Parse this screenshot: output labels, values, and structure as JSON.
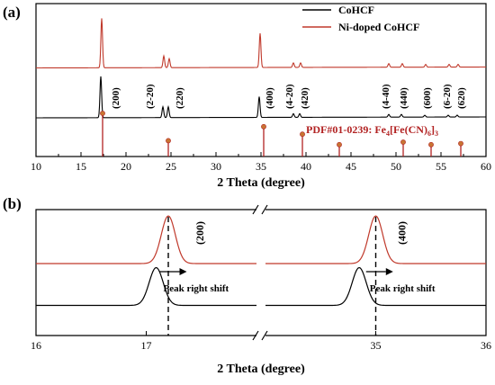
{
  "colors": {
    "cohcf": "#000000",
    "nidoped": "#c0392b",
    "pdf": "#b22222",
    "pdf_marker": "#c87533"
  },
  "chart_data": [
    {
      "type": "line",
      "panel_label": "(a)",
      "xlabel": "2 Theta (degree)",
      "ylabel": "",
      "xlim": [
        10,
        60
      ],
      "x_ticks": [
        10,
        15,
        20,
        25,
        30,
        35,
        40,
        45,
        50,
        55,
        60
      ],
      "x_tick_labels": [
        "10",
        "15",
        "20",
        "25",
        "30",
        "35",
        "40",
        "45",
        "50",
        "55",
        "60"
      ],
      "legend_position": "top-right",
      "series": [
        {
          "name": "CoHCF",
          "peaks": [
            {
              "x": 17.2,
              "height": 46
            },
            {
              "x": 24.1,
              "height": 12
            },
            {
              "x": 24.7,
              "height": 12
            },
            {
              "x": 34.8,
              "height": 23
            },
            {
              "x": 38.6,
              "height": 4
            },
            {
              "x": 39.3,
              "height": 4
            },
            {
              "x": 49.2,
              "height": 3
            },
            {
              "x": 50.6,
              "height": 3
            },
            {
              "x": 53.2,
              "height": 2
            },
            {
              "x": 55.8,
              "height": 2
            },
            {
              "x": 56.8,
              "height": 2
            }
          ]
        },
        {
          "name": "Ni-doped CoHCF",
          "peaks": [
            {
              "x": 17.3,
              "height": 55
            },
            {
              "x": 24.2,
              "height": 13
            },
            {
              "x": 24.8,
              "height": 10
            },
            {
              "x": 34.9,
              "height": 38
            },
            {
              "x": 38.6,
              "height": 5
            },
            {
              "x": 39.4,
              "height": 5
            },
            {
              "x": 49.2,
              "height": 4
            },
            {
              "x": 50.7,
              "height": 4
            },
            {
              "x": 53.3,
              "height": 3
            },
            {
              "x": 55.9,
              "height": 3
            },
            {
              "x": 56.9,
              "height": 3
            }
          ]
        }
      ],
      "reference": {
        "label_prefix": "PDF#01-0239: Fe",
        "sub1": "4",
        "label_mid1": "[Fe(CN)",
        "sub2": "6",
        "label_mid2": "]",
        "sub3": "3",
        "sticks": [
          {
            "x": 17.4,
            "rel": 1.0
          },
          {
            "x": 24.7,
            "rel": 0.24
          },
          {
            "x": 35.3,
            "rel": 0.63
          },
          {
            "x": 39.6,
            "rel": 0.42
          },
          {
            "x": 43.7,
            "rel": 0.13
          },
          {
            "x": 50.8,
            "rel": 0.2
          },
          {
            "x": 53.9,
            "rel": 0.13
          },
          {
            "x": 57.2,
            "rel": 0.16
          }
        ]
      },
      "annotations": [
        {
          "text": "(200)",
          "x": 18.8
        },
        {
          "text": "(2-20)",
          "x": 22.6
        },
        {
          "text": "(220)",
          "x": 25.9
        },
        {
          "text": "(400)",
          "x": 35.9
        },
        {
          "text": "(4-20)",
          "x": 38.1
        },
        {
          "text": "(420)",
          "x": 39.8
        },
        {
          "text": "(4-40)",
          "x": 48.8
        },
        {
          "text": "(440)",
          "x": 50.8
        },
        {
          "text": "(600)",
          "x": 53.4
        },
        {
          "text": "(6-20)",
          "x": 55.6
        },
        {
          "text": "(620)",
          "x": 57.2
        }
      ]
    },
    {
      "type": "line",
      "panel_label": "(b)",
      "xlabel": "2 Theta (degree)",
      "ylabel": "",
      "broken_x_axis": true,
      "segments": [
        {
          "xlim": [
            16,
            18
          ],
          "ticks": [
            16,
            17
          ],
          "tick_labels": [
            "16",
            "17"
          ]
        },
        {
          "xlim": [
            34,
            36
          ],
          "ticks": [
            35,
            36
          ],
          "tick_labels": [
            "35",
            "36"
          ]
        }
      ],
      "series": [
        {
          "name": "Ni-doped CoHCF",
          "peaks": [
            {
              "segment": 0,
              "x": 17.2
            },
            {
              "segment": 1,
              "x": 35.0
            }
          ]
        },
        {
          "name": "CoHCF",
          "peaks": [
            {
              "segment": 0,
              "x": 17.09
            },
            {
              "segment": 1,
              "x": 34.85
            }
          ]
        }
      ],
      "annotations": [
        {
          "text": "(200)",
          "segment": 0,
          "x": 17.52
        },
        {
          "text": "(400)",
          "segment": 1,
          "x": 35.27
        },
        {
          "text": "Peak right shift",
          "segment": 0,
          "x": 17.4
        },
        {
          "text": "Peak right shift",
          "segment": 1,
          "x": 35.19
        }
      ]
    }
  ]
}
